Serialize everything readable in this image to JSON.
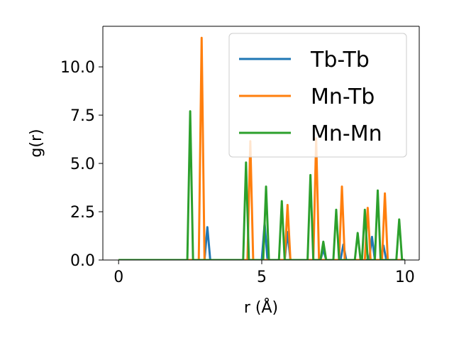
{
  "chart_data": {
    "type": "line",
    "title": "",
    "xlabel": "r (Å)",
    "ylabel": "g(r)",
    "xlim": [
      -0.55,
      10.5
    ],
    "ylim": [
      0,
      12.1
    ],
    "xticks": [
      0,
      5,
      10
    ],
    "xtick_labels": [
      "0",
      "5",
      "10"
    ],
    "yticks": [
      0,
      2.5,
      5,
      7.5,
      10
    ],
    "ytick_labels": [
      "0.0",
      "2.5",
      "5.0",
      "7.5",
      "10.0"
    ],
    "grid": false,
    "legend_position": "top-right",
    "series": [
      {
        "name": "Tb-Tb",
        "color": "#1f77b4",
        "x": [
          0,
          3.0,
          3.1,
          3.2,
          5.0,
          5.1,
          5.2,
          5.8,
          5.9,
          6.0,
          7.05,
          7.15,
          7.25,
          7.75,
          7.85,
          7.95,
          8.75,
          8.85,
          8.95,
          9.15,
          9.25,
          9.35,
          10.0
        ],
        "y": [
          0,
          0,
          1.7,
          0,
          0,
          1.9,
          0,
          0,
          1.45,
          0,
          0,
          0.55,
          0,
          0,
          0.8,
          0,
          0,
          1.2,
          0,
          0,
          0.75,
          0,
          0
        ]
      },
      {
        "name": "Mn-Tb",
        "color": "#ff7f0e",
        "x": [
          0,
          2.8,
          2.9,
          3.0,
          4.5,
          4.6,
          4.7,
          5.8,
          5.9,
          6.0,
          6.8,
          6.9,
          7.0,
          7.7,
          7.8,
          7.9,
          8.6,
          8.7,
          8.8,
          9.2,
          9.3,
          9.4,
          10.0
        ],
        "y": [
          0,
          0,
          11.5,
          0,
          0,
          6.15,
          0,
          0,
          2.85,
          0,
          0,
          6.3,
          0,
          0,
          3.8,
          0,
          0,
          2.7,
          0,
          0,
          3.45,
          0,
          0
        ]
      },
      {
        "name": "Mn-Mn",
        "color": "#2ca02c",
        "x": [
          0,
          2.4,
          2.5,
          2.6,
          4.35,
          4.45,
          4.55,
          5.05,
          5.15,
          5.25,
          5.6,
          5.7,
          5.8,
          6.6,
          6.7,
          6.8,
          7.05,
          7.15,
          7.25,
          7.5,
          7.6,
          7.7,
          8.25,
          8.35,
          8.45,
          8.5,
          8.6,
          8.7,
          8.95,
          9.05,
          9.15,
          9.7,
          9.8,
          9.9,
          10.0
        ],
        "y": [
          0,
          0,
          7.7,
          0,
          0,
          5.05,
          0,
          0,
          3.8,
          0,
          0,
          3.05,
          0,
          0,
          4.4,
          0,
          0,
          0.95,
          0,
          0,
          2.6,
          0,
          0,
          1.4,
          0,
          0,
          2.6,
          0,
          0,
          3.6,
          0,
          0,
          2.1,
          0,
          0
        ]
      }
    ]
  }
}
